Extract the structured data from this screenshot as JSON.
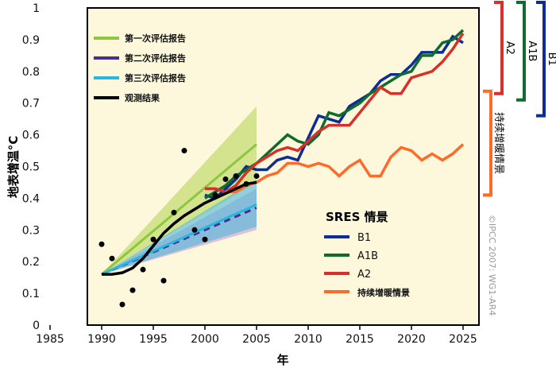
{
  "chart_data": {
    "type": "line",
    "xlabel": "年",
    "ylabel": "地表增温°C",
    "xlim": [
      1985,
      2027
    ],
    "ylim": [
      0,
      1
    ],
    "xticks": [
      "1985",
      "1990",
      "1995",
      "2000",
      "2005",
      "2010",
      "2015",
      "2020",
      "2025"
    ],
    "yticks": [
      "0",
      "0.1",
      "0.2",
      "0.3",
      "0.4",
      "0.5",
      "0.6",
      "0.7",
      "0.8",
      "0.9",
      "1"
    ],
    "assessments": [
      {
        "name": "第一次评估报告",
        "color": "#8dc63f",
        "start": [
          1990,
          0.16
        ],
        "end": [
          2005,
          0.57
        ],
        "band_end": [
          0.45,
          0.69
        ]
      },
      {
        "name": "第二次评估报告",
        "color": "#4b2c8f",
        "start": [
          1990,
          0.16
        ],
        "end": [
          2005,
          0.37
        ],
        "band_end": [
          0.3,
          0.43
        ]
      },
      {
        "name": "第三次评估报告",
        "color": "#29b6e0",
        "start": [
          1990,
          0.16
        ],
        "end": [
          2005,
          0.38
        ],
        "band_end": [
          0.31,
          0.46
        ]
      }
    ],
    "observed": {
      "name": "观测结果",
      "color": "#000000",
      "points_x": [
        1990,
        1991,
        1992,
        1993,
        1994,
        1995,
        1996,
        1997,
        1998,
        1999,
        2000,
        2001,
        2002,
        2003,
        2004,
        2005
      ],
      "points_y": [
        0.255,
        0.21,
        0.065,
        0.11,
        0.175,
        0.27,
        0.14,
        0.355,
        0.55,
        0.3,
        0.27,
        0.41,
        0.46,
        0.47,
        0.445,
        0.47
      ],
      "smooth_x": [
        1990,
        1991,
        1992,
        1993,
        1994,
        1995,
        1996,
        1997,
        1998,
        1999,
        2000,
        2001,
        2002,
        2003,
        2004,
        2005
      ],
      "smooth_y": [
        0.16,
        0.16,
        0.165,
        0.18,
        0.21,
        0.25,
        0.29,
        0.32,
        0.345,
        0.365,
        0.385,
        0.4,
        0.415,
        0.43,
        0.445,
        0.45
      ]
    },
    "scenarios_title": "SRES 情景",
    "scenarios": [
      {
        "name": "B1",
        "color": "#0a2d96",
        "x_start": 2000,
        "values": [
          0.41,
          0.4,
          0.43,
          0.46,
          0.5,
          0.49,
          0.49,
          0.52,
          0.53,
          0.52,
          0.59,
          0.66,
          0.65,
          0.64,
          0.69,
          0.71,
          0.73,
          0.77,
          0.79,
          0.79,
          0.82,
          0.86,
          0.86,
          0.86,
          0.91,
          0.89
        ]
      },
      {
        "name": "A1B",
        "color": "#0f6b2e",
        "x_start": 2000,
        "values": [
          0.4,
          0.42,
          0.44,
          0.47,
          0.49,
          0.51,
          0.54,
          0.57,
          0.6,
          0.58,
          0.57,
          0.6,
          0.67,
          0.66,
          0.68,
          0.7,
          0.73,
          0.75,
          0.77,
          0.79,
          0.8,
          0.85,
          0.85,
          0.89,
          0.9,
          0.93
        ]
      },
      {
        "name": "A2",
        "color": "#d6302a",
        "x_start": 2000,
        "values": [
          0.43,
          0.43,
          0.42,
          0.44,
          0.48,
          0.51,
          0.53,
          0.55,
          0.56,
          0.55,
          0.58,
          0.61,
          0.63,
          0.63,
          0.63,
          0.67,
          0.71,
          0.75,
          0.73,
          0.73,
          0.78,
          0.79,
          0.8,
          0.83,
          0.87,
          0.92
        ]
      },
      {
        "name": "持续增暖情景",
        "color": "#ff6a2b",
        "x_start": 2002,
        "values": [
          0.42,
          0.42,
          0.44,
          0.45,
          0.47,
          0.48,
          0.51,
          0.51,
          0.5,
          0.51,
          0.5,
          0.47,
          0.5,
          0.52,
          0.47,
          0.47,
          0.53,
          0.56,
          0.55,
          0.52,
          0.54,
          0.52,
          0.54,
          0.57
        ]
      }
    ],
    "brackets": [
      {
        "label": "A2",
        "color": "#d6302a",
        "range": [
          0.73,
          1.0
        ]
      },
      {
        "label": "A1B",
        "color": "#0f6b2e",
        "range": [
          0.71,
          1.0
        ]
      },
      {
        "label": "B1",
        "color": "#0a2d96",
        "range": [
          0.66,
          1.0
        ]
      },
      {
        "label": "持续增暖情景",
        "color": "#ff6a2b",
        "range": [
          0.41,
          0.72
        ]
      }
    ],
    "copyright": "©IPCC 2007: WG1-AR4"
  }
}
